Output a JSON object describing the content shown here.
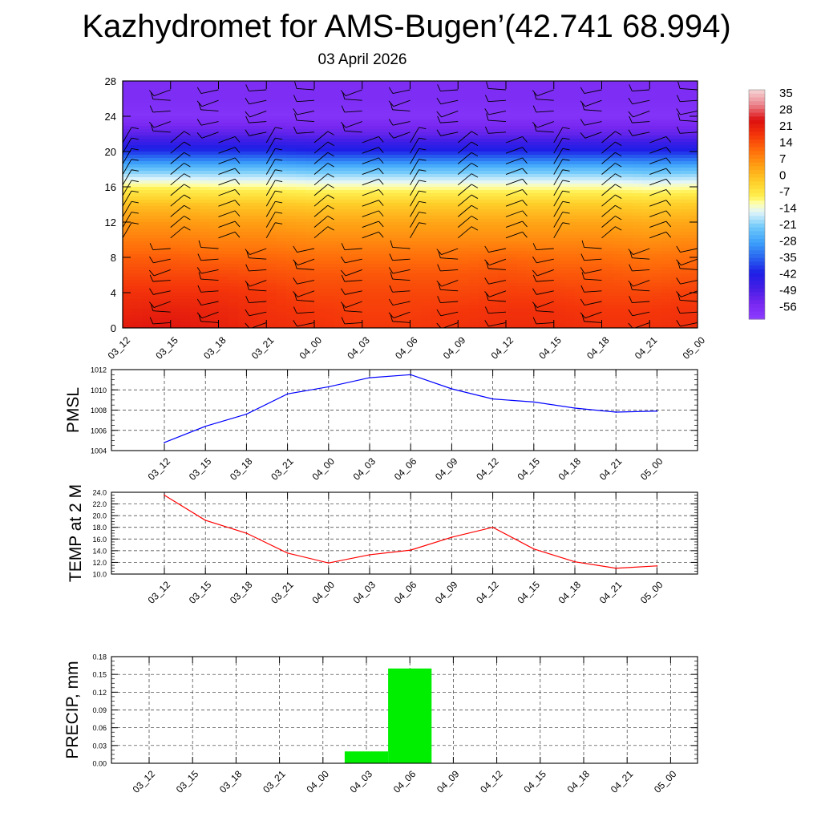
{
  "header": {
    "title": "Kazhydromet for AMS-Bugen’(42.741 68.994)",
    "subtitle": "03 April 2026"
  },
  "chart_data": [
    {
      "type": "heatmap",
      "title": "",
      "xlabel": "",
      "ylabel": "",
      "x_tick_labels": [
        "03_12",
        "03_15",
        "03_18",
        "03_21",
        "04_00",
        "04_03",
        "04_06",
        "04_09",
        "04_12",
        "04_15",
        "04_18",
        "04_21",
        "05_00"
      ],
      "y_ticks": [
        0,
        4,
        8,
        12,
        16,
        20,
        24,
        28
      ],
      "ylim": [
        0,
        28
      ],
      "z_levels": [
        0,
        2,
        4,
        6,
        8,
        10,
        12,
        14,
        16,
        18,
        20,
        22,
        24,
        26,
        28
      ],
      "z_temperature": [
        [
          26,
          24,
          22,
          19,
          16,
          12,
          8,
          2,
          -8,
          -22,
          -40,
          -52,
          -60,
          -58,
          -58
        ],
        [
          27,
          25,
          22,
          19,
          16,
          12,
          8,
          2,
          -8,
          -22,
          -40,
          -52,
          -60,
          -58,
          -58
        ],
        [
          25,
          24,
          22,
          19,
          15,
          11,
          7,
          1,
          -9,
          -22,
          -40,
          -52,
          -60,
          -58,
          -58
        ],
        [
          23,
          22,
          21,
          18,
          15,
          11,
          7,
          1,
          -9,
          -22,
          -40,
          -52,
          -60,
          -58,
          -58
        ],
        [
          22,
          21,
          19,
          17,
          14,
          10,
          6,
          0,
          -10,
          -23,
          -41,
          -53,
          -60,
          -58,
          -58
        ],
        [
          21,
          20,
          19,
          17,
          14,
          10,
          6,
          0,
          -10,
          -23,
          -41,
          -53,
          -60,
          -58,
          -58
        ],
        [
          21,
          20,
          19,
          17,
          14,
          10,
          6,
          0,
          -10,
          -23,
          -41,
          -53,
          -60,
          -58,
          -58
        ],
        [
          22,
          21,
          19,
          17,
          14,
          10,
          6,
          0,
          -10,
          -23,
          -41,
          -53,
          -60,
          -58,
          -58
        ],
        [
          23,
          22,
          20,
          18,
          15,
          10,
          6,
          0,
          -10,
          -23,
          -41,
          -53,
          -60,
          -58,
          -58
        ],
        [
          23,
          22,
          20,
          17,
          14,
          10,
          6,
          0,
          -10,
          -23,
          -41,
          -53,
          -60,
          -58,
          -58
        ],
        [
          22,
          21,
          19,
          17,
          14,
          10,
          6,
          0,
          -10,
          -23,
          -41,
          -53,
          -60,
          -58,
          -58
        ],
        [
          22,
          21,
          19,
          16,
          13,
          9,
          5,
          -1,
          -11,
          -24,
          -41,
          -53,
          -60,
          -58,
          -58
        ],
        [
          23,
          22,
          20,
          17,
          14,
          10,
          6,
          0,
          -10,
          -23,
          -41,
          -53,
          -60,
          -58,
          -58
        ]
      ],
      "colorbar_labels": [
        "35",
        "28",
        "21",
        "14",
        "7",
        "0",
        "-7",
        "-14",
        "-21",
        "-28",
        "-35",
        "-42",
        "-49",
        "-56"
      ],
      "colorbar_range": [
        -63,
        42
      ],
      "wind_barbs": "overlaid at every time step and level"
    },
    {
      "type": "line",
      "ylabel": "PMSL",
      "x": [
        "03_12",
        "03_15",
        "03_18",
        "03_21",
        "04_00",
        "04_03",
        "04_06",
        "04_09",
        "04_12",
        "04_15",
        "04_18",
        "04_21",
        "05_00"
      ],
      "y_ticks": [
        "1004",
        "1006",
        "1008",
        "1010",
        "1012"
      ],
      "ylim": [
        1004,
        1012
      ],
      "series": [
        {
          "values": [
            1004.8,
            1006.4,
            1007.6,
            1009.6,
            1010.3,
            1011.2,
            1011.5,
            1010.1,
            1009.1,
            1008.8,
            1008.2,
            1007.8,
            1007.9
          ]
        }
      ],
      "color": "#0000ff",
      "grid": true
    },
    {
      "type": "line",
      "ylabel": "TEMP at 2 M",
      "x": [
        "03_12",
        "03_15",
        "03_18",
        "03_21",
        "04_00",
        "04_03",
        "04_06",
        "04_09",
        "04_12",
        "04_15",
        "04_18",
        "04_21",
        "05_00"
      ],
      "y_ticks": [
        "10.0",
        "12.0",
        "14.0",
        "16.0",
        "18.0",
        "20.0",
        "22.0",
        "24.0"
      ],
      "ylim": [
        10,
        24
      ],
      "series": [
        {
          "values": [
            23.5,
            19.2,
            17.0,
            13.6,
            11.9,
            13.3,
            14.1,
            16.3,
            18.0,
            14.3,
            12.1,
            11.0,
            11.4
          ]
        }
      ],
      "color": "#ff0000",
      "grid": true
    },
    {
      "type": "bar",
      "ylabel": "PRECIP, mm",
      "categories": [
        "03_12",
        "03_15",
        "03_18",
        "03_21",
        "04_00",
        "04_03",
        "04_06",
        "04_09",
        "04_12",
        "04_15",
        "04_18",
        "04_21",
        "05_00"
      ],
      "values": [
        0,
        0,
        0,
        0,
        0,
        0.02,
        0.16,
        0,
        0,
        0,
        0,
        0,
        0
      ],
      "y_ticks": [
        "0.00",
        "0.03",
        "0.06",
        "0.09",
        "0.12",
        "0.15",
        "0.18"
      ],
      "ylim": [
        0,
        0.18
      ],
      "color": "#00ee00",
      "grid": true
    }
  ]
}
